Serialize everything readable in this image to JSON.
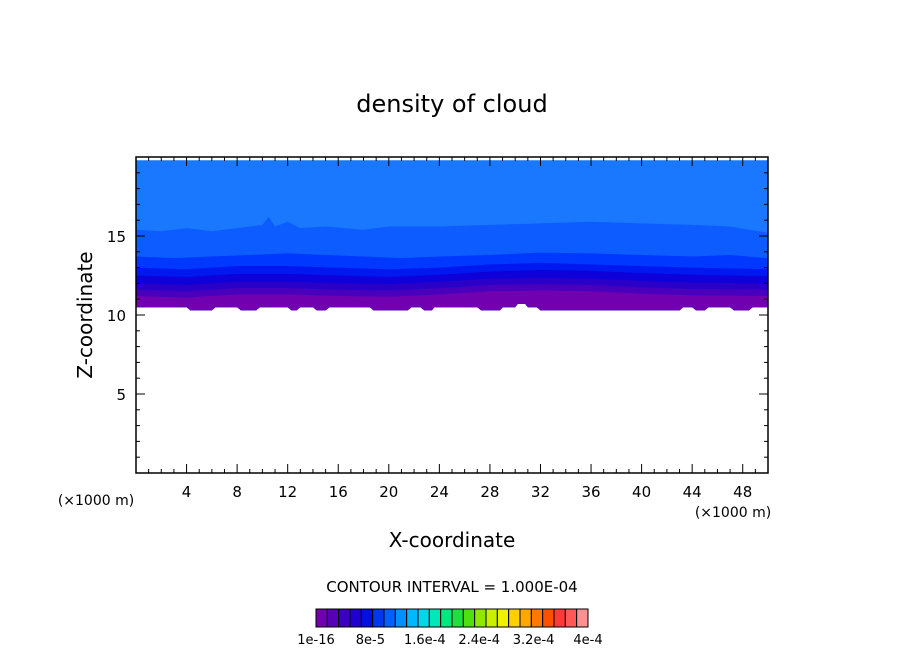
{
  "chart_data": {
    "type": "contour",
    "title": "density of cloud",
    "xlabel": "X-coordinate",
    "ylabel": "Z-coordinate",
    "x_unit_left": "(×1000 m)",
    "x_unit_right": "(×1000 m)",
    "xlim": [
      0,
      50
    ],
    "ylim": [
      0,
      20
    ],
    "xticks": [
      4,
      8,
      12,
      16,
      20,
      24,
      28,
      32,
      36,
      40,
      44,
      48
    ],
    "yticks": [
      5,
      10,
      15
    ],
    "x_minor_step": 1,
    "y_minor_step": 1,
    "contour_interval_text": "CONTOUR INTERVAL = 1.000E-04",
    "colorbar_labels": [
      "1e-16",
      "8e-5",
      "1.6e-4",
      "2.4e-4",
      "3.2e-4",
      "4e-4"
    ],
    "colorbar_colors": [
      "#7000b0",
      "#5800b8",
      "#3c00c0",
      "#2000d0",
      "#0010e0",
      "#0038f0",
      "#0060ff",
      "#0090ff",
      "#00b8ff",
      "#00d8e8",
      "#00e8b8",
      "#00e880",
      "#20e040",
      "#50e010",
      "#90e800",
      "#c8f000",
      "#f0f000",
      "#ffd000",
      "#ffa800",
      "#ff7800",
      "#ff5000",
      "#ff3838",
      "#ff5858",
      "#ff9090"
    ],
    "fields": [
      {
        "color": "#1a78ff",
        "top": [
          [
            0,
            19.8
          ],
          [
            50,
            19.8
          ]
        ]
      },
      {
        "color": "#0d5cff",
        "top": [
          [
            0,
            15.4
          ],
          [
            2,
            15.3
          ],
          [
            4,
            15.5
          ],
          [
            6,
            15.3
          ],
          [
            8,
            15.5
          ],
          [
            10,
            15.7
          ],
          [
            10.5,
            16.2
          ],
          [
            11,
            15.6
          ],
          [
            12,
            15.9
          ],
          [
            13,
            15.5
          ],
          [
            15,
            15.6
          ],
          [
            18,
            15.4
          ],
          [
            20,
            15.6
          ],
          [
            24,
            15.6
          ],
          [
            28,
            15.7
          ],
          [
            32,
            15.8
          ],
          [
            36,
            15.9
          ],
          [
            40,
            15.8
          ],
          [
            44,
            15.7
          ],
          [
            47,
            15.6
          ],
          [
            50,
            15.2
          ]
        ]
      },
      {
        "color": "#0038ff",
        "top": [
          [
            0,
            13.7
          ],
          [
            3,
            13.6
          ],
          [
            6,
            13.7
          ],
          [
            9,
            13.8
          ],
          [
            12,
            13.9
          ],
          [
            15,
            13.8
          ],
          [
            18,
            13.7
          ],
          [
            21,
            13.6
          ],
          [
            24,
            13.7
          ],
          [
            28,
            13.8
          ],
          [
            32,
            13.95
          ],
          [
            36,
            13.9
          ],
          [
            40,
            13.8
          ],
          [
            44,
            13.7
          ],
          [
            47,
            13.8
          ],
          [
            50,
            13.6
          ]
        ]
      },
      {
        "color": "#0018f0",
        "top": [
          [
            0,
            13.0
          ],
          [
            4,
            12.9
          ],
          [
            8,
            13.1
          ],
          [
            12,
            13.1
          ],
          [
            16,
            13.0
          ],
          [
            20,
            12.9
          ],
          [
            24,
            13.0
          ],
          [
            28,
            13.2
          ],
          [
            32,
            13.3
          ],
          [
            36,
            13.2
          ],
          [
            40,
            13.1
          ],
          [
            44,
            13.0
          ],
          [
            50,
            12.9
          ]
        ]
      },
      {
        "color": "#0e00d8",
        "top": [
          [
            0,
            12.5
          ],
          [
            4,
            12.4
          ],
          [
            8,
            12.6
          ],
          [
            12,
            12.6
          ],
          [
            16,
            12.5
          ],
          [
            20,
            12.4
          ],
          [
            24,
            12.55
          ],
          [
            28,
            12.75
          ],
          [
            32,
            12.85
          ],
          [
            36,
            12.8
          ],
          [
            40,
            12.65
          ],
          [
            44,
            12.55
          ],
          [
            50,
            12.45
          ]
        ]
      },
      {
        "color": "#2a00c8",
        "top": [
          [
            0,
            12.0
          ],
          [
            4,
            11.9
          ],
          [
            8,
            12.1
          ],
          [
            12,
            12.1
          ],
          [
            16,
            12.0
          ],
          [
            20,
            11.95
          ],
          [
            24,
            12.1
          ],
          [
            28,
            12.3
          ],
          [
            32,
            12.35
          ],
          [
            36,
            12.3
          ],
          [
            40,
            12.15
          ],
          [
            44,
            12.05
          ],
          [
            50,
            12.0
          ]
        ]
      },
      {
        "color": "#4800bc",
        "top": [
          [
            0,
            11.6
          ],
          [
            4,
            11.5
          ],
          [
            8,
            11.7
          ],
          [
            12,
            11.7
          ],
          [
            16,
            11.6
          ],
          [
            20,
            11.55
          ],
          [
            24,
            11.7
          ],
          [
            28,
            11.9
          ],
          [
            32,
            11.95
          ],
          [
            36,
            11.9
          ],
          [
            40,
            11.75
          ],
          [
            44,
            11.65
          ],
          [
            50,
            11.6
          ]
        ]
      },
      {
        "color": "#7000b0",
        "top": [
          [
            0,
            11.2
          ],
          [
            4,
            11.1
          ],
          [
            8,
            11.3
          ],
          [
            12,
            11.3
          ],
          [
            16,
            11.2
          ],
          [
            20,
            11.15
          ],
          [
            24,
            11.3
          ],
          [
            28,
            11.5
          ],
          [
            32,
            11.55
          ],
          [
            36,
            11.5
          ],
          [
            40,
            11.35
          ],
          [
            44,
            11.25
          ],
          [
            50,
            11.2
          ]
        ]
      }
    ],
    "cloud_base": [
      [
        0,
        10.5
      ],
      [
        4,
        10.5
      ],
      [
        4.3,
        10.3
      ],
      [
        6,
        10.3
      ],
      [
        6.3,
        10.5
      ],
      [
        8,
        10.5
      ],
      [
        8.3,
        10.3
      ],
      [
        9.5,
        10.3
      ],
      [
        9.8,
        10.5
      ],
      [
        12,
        10.5
      ],
      [
        12.3,
        10.3
      ],
      [
        12.7,
        10.3
      ],
      [
        13,
        10.5
      ],
      [
        14,
        10.5
      ],
      [
        14.3,
        10.3
      ],
      [
        15,
        10.3
      ],
      [
        15.3,
        10.5
      ],
      [
        18.5,
        10.5
      ],
      [
        18.8,
        10.3
      ],
      [
        21.5,
        10.3
      ],
      [
        21.8,
        10.5
      ],
      [
        22.5,
        10.5
      ],
      [
        22.8,
        10.3
      ],
      [
        23.4,
        10.3
      ],
      [
        23.6,
        10.5
      ],
      [
        27,
        10.5
      ],
      [
        27.3,
        10.3
      ],
      [
        28.8,
        10.3
      ],
      [
        29,
        10.5
      ],
      [
        30,
        10.5
      ],
      [
        30.2,
        10.7
      ],
      [
        30.8,
        10.7
      ],
      [
        31,
        10.5
      ],
      [
        31.7,
        10.5
      ],
      [
        32,
        10.3
      ],
      [
        43,
        10.3
      ],
      [
        43.3,
        10.5
      ],
      [
        44,
        10.5
      ],
      [
        44.3,
        10.3
      ],
      [
        45,
        10.3
      ],
      [
        45.3,
        10.5
      ],
      [
        47,
        10.5
      ],
      [
        47.3,
        10.3
      ],
      [
        48.5,
        10.3
      ],
      [
        48.8,
        10.5
      ],
      [
        50,
        10.5
      ]
    ]
  }
}
